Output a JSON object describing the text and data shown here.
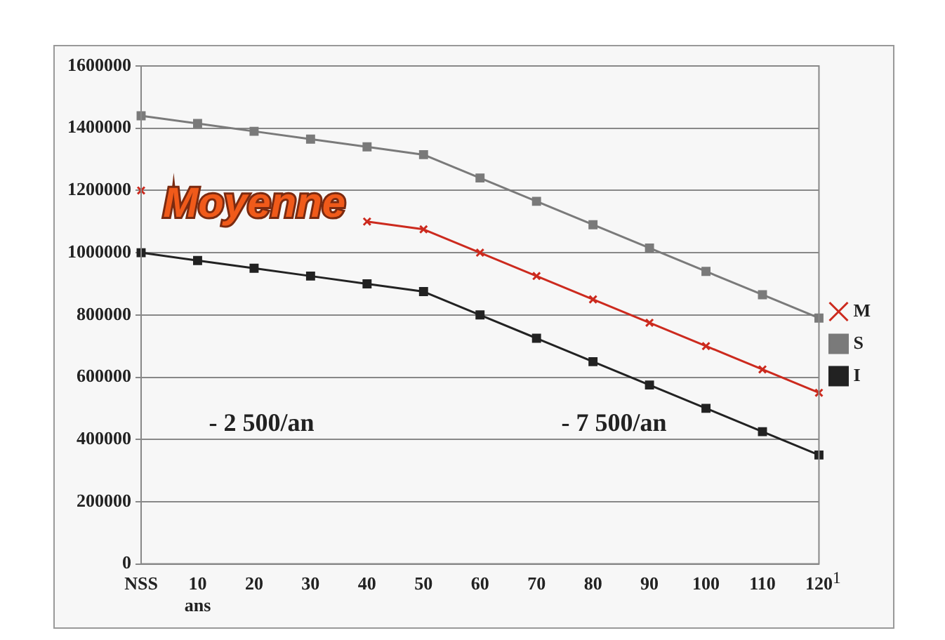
{
  "chart_data": {
    "type": "line",
    "categories": [
      "NSS",
      "10 ans",
      "20",
      "30",
      "40",
      "50",
      "60",
      "70",
      "80",
      "90",
      "100",
      "110",
      "120"
    ],
    "series": [
      {
        "name": "M",
        "color": "#cc2a1e",
        "marker": "cross",
        "values": [
          1200000,
          null,
          null,
          null,
          1100000,
          1075000,
          1000000,
          925000,
          850000,
          775000,
          700000,
          625000,
          550000
        ]
      },
      {
        "name": "S",
        "color": "#7a7a7a",
        "marker": "square",
        "values": [
          1440000,
          1415000,
          1390000,
          1365000,
          1340000,
          1315000,
          1240000,
          1165000,
          1090000,
          1015000,
          940000,
          865000,
          790000
        ]
      },
      {
        "name": "I",
        "color": "#222222",
        "marker": "square",
        "values": [
          1000000,
          975000,
          950000,
          925000,
          900000,
          875000,
          800000,
          725000,
          650000,
          575000,
          500000,
          425000,
          350000
        ]
      }
    ],
    "ylim": [
      0,
      1600000
    ],
    "yticks": [
      0,
      200000,
      400000,
      600000,
      800000,
      1000000,
      1200000,
      1400000,
      1600000
    ],
    "grid": "y",
    "legend": "right",
    "line_style": "solid",
    "annotations": [
      "Moyenne",
      "- 2 500/an",
      "- 7 500/an",
      "1"
    ]
  }
}
